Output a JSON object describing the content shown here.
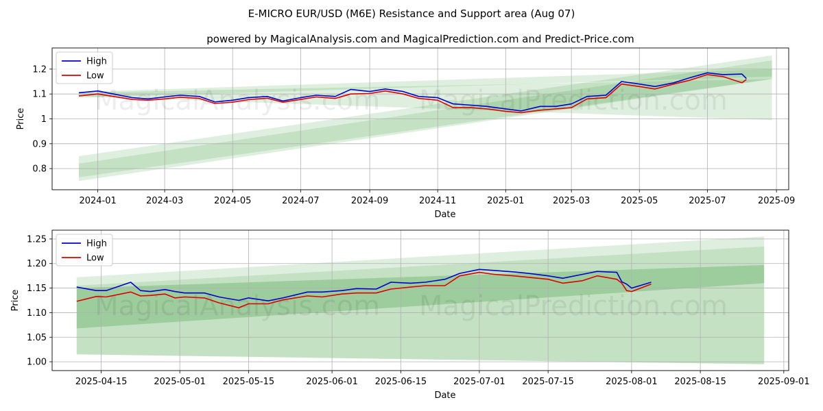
{
  "figure": {
    "title": "E-MICRO EUR/USD (M6E) Resistance and Support area (Aug 07)",
    "subtitle": "powered by MagicalAnalysis.com and MagicalPrediction.com and Predict-Price.com",
    "watermark_left": "MagicalAnalysis.com",
    "watermark_right": "MagicalPrediction.com"
  },
  "colors": {
    "high": "#0000cc",
    "low": "#dd0000",
    "band_light": "#c9e6c5",
    "band_mid": "#9fcf9a",
    "grid": "#b0b0b0"
  },
  "chart_data": [
    {
      "type": "line",
      "xlabel": "Date",
      "ylabel": "Price",
      "xlim": [
        "2023-11-21",
        "2025-09-12"
      ],
      "ylim": [
        0.715,
        1.285
      ],
      "x_ticks": [
        "2024-01",
        "2024-03",
        "2024-05",
        "2024-07",
        "2024-09",
        "2024-11",
        "2025-01",
        "2025-03",
        "2025-05",
        "2025-07",
        "2025-09"
      ],
      "x_tick_dates": [
        "2024-01-01",
        "2024-03-01",
        "2024-05-01",
        "2024-07-01",
        "2024-09-01",
        "2024-11-01",
        "2025-01-01",
        "2025-03-01",
        "2025-05-01",
        "2025-07-01",
        "2025-09-01"
      ],
      "y_ticks": [
        0.8,
        0.9,
        1.0,
        1.1,
        1.2
      ],
      "grid": true,
      "legend": "top-left",
      "series": [
        {
          "name": "High",
          "x": [
            "2023-12-15",
            "2024-01-01",
            "2024-01-15",
            "2024-02-01",
            "2024-02-15",
            "2024-03-01",
            "2024-03-15",
            "2024-04-01",
            "2024-04-15",
            "2024-05-01",
            "2024-05-15",
            "2024-06-01",
            "2024-06-15",
            "2024-07-01",
            "2024-07-15",
            "2024-08-01",
            "2024-08-15",
            "2024-09-01",
            "2024-09-15",
            "2024-10-01",
            "2024-10-15",
            "2024-11-01",
            "2024-11-15",
            "2024-12-01",
            "2024-12-15",
            "2025-01-01",
            "2025-01-15",
            "2025-02-01",
            "2025-02-15",
            "2025-03-01",
            "2025-03-15",
            "2025-04-01",
            "2025-04-15",
            "2025-05-01",
            "2025-05-15",
            "2025-06-01",
            "2025-06-15",
            "2025-07-01",
            "2025-07-15",
            "2025-08-01",
            "2025-08-05"
          ],
          "values": [
            1.105,
            1.112,
            1.1,
            1.085,
            1.08,
            1.088,
            1.095,
            1.09,
            1.068,
            1.075,
            1.085,
            1.09,
            1.072,
            1.085,
            1.095,
            1.09,
            1.118,
            1.11,
            1.12,
            1.11,
            1.09,
            1.085,
            1.06,
            1.055,
            1.05,
            1.04,
            1.032,
            1.05,
            1.05,
            1.06,
            1.09,
            1.095,
            1.15,
            1.14,
            1.13,
            1.145,
            1.165,
            1.185,
            1.178,
            1.18,
            1.162
          ]
        },
        {
          "name": "Low",
          "x": [
            "2023-12-15",
            "2024-01-01",
            "2024-01-15",
            "2024-02-01",
            "2024-02-15",
            "2024-03-01",
            "2024-03-15",
            "2024-04-01",
            "2024-04-15",
            "2024-05-01",
            "2024-05-15",
            "2024-06-01",
            "2024-06-15",
            "2024-07-01",
            "2024-07-15",
            "2024-08-01",
            "2024-08-15",
            "2024-09-01",
            "2024-09-15",
            "2024-10-01",
            "2024-10-15",
            "2024-11-01",
            "2024-11-15",
            "2024-12-01",
            "2024-12-15",
            "2025-01-01",
            "2025-01-15",
            "2025-02-01",
            "2025-02-15",
            "2025-03-01",
            "2025-03-15",
            "2025-04-01",
            "2025-04-15",
            "2025-05-01",
            "2025-05-15",
            "2025-06-01",
            "2025-06-15",
            "2025-07-01",
            "2025-07-15",
            "2025-08-01",
            "2025-08-05"
          ],
          "values": [
            1.092,
            1.1,
            1.09,
            1.078,
            1.075,
            1.08,
            1.087,
            1.082,
            1.062,
            1.067,
            1.077,
            1.083,
            1.067,
            1.078,
            1.088,
            1.082,
            1.1,
            1.102,
            1.112,
            1.1,
            1.082,
            1.075,
            1.045,
            1.045,
            1.04,
            1.03,
            1.025,
            1.035,
            1.04,
            1.045,
            1.08,
            1.085,
            1.14,
            1.13,
            1.12,
            1.14,
            1.155,
            1.178,
            1.17,
            1.145,
            1.158
          ]
        }
      ],
      "bands": [
        {
          "x": [
            "2023-12-15",
            "2025-08-28"
          ],
          "upper": [
            0.85,
            1.255
          ],
          "lower": [
            0.765,
            1.16
          ]
        },
        {
          "x": [
            "2023-12-15",
            "2025-08-28"
          ],
          "upper": [
            0.82,
            1.235
          ],
          "lower": [
            0.75,
            1.16
          ]
        },
        {
          "x": [
            "2023-12-15",
            "2025-08-28"
          ],
          "upper": [
            1.108,
            1.2
          ],
          "lower": [
            1.085,
            1.17
          ]
        },
        {
          "x": [
            "2023-12-15",
            "2025-08-28"
          ],
          "upper": [
            1.105,
            1.16
          ],
          "lower": [
            1.09,
            0.995
          ]
        }
      ]
    },
    {
      "type": "line",
      "xlabel": "Date",
      "ylabel": "Price",
      "xlim": [
        "2025-04-05",
        "2025-09-02"
      ],
      "ylim": [
        0.982,
        1.268
      ],
      "x_ticks": [
        "2025-04-15",
        "2025-05-01",
        "2025-05-15",
        "2025-06-01",
        "2025-06-15",
        "2025-07-01",
        "2025-07-15",
        "2025-08-01",
        "2025-08-15",
        "2025-09-01"
      ],
      "y_ticks": [
        1.0,
        1.05,
        1.1,
        1.15,
        1.2,
        1.25
      ],
      "y_tick_labels": [
        "1.00",
        "1.05",
        "1.10",
        "1.15",
        "1.20",
        "1.25"
      ],
      "grid": true,
      "legend": "top-left",
      "series": [
        {
          "name": "High",
          "x": [
            "2025-04-10",
            "2025-04-14",
            "2025-04-16",
            "2025-04-21",
            "2025-04-23",
            "2025-04-25",
            "2025-04-28",
            "2025-04-30",
            "2025-05-02",
            "2025-05-06",
            "2025-05-09",
            "2025-05-13",
            "2025-05-15",
            "2025-05-19",
            "2025-05-22",
            "2025-05-27",
            "2025-05-30",
            "2025-06-03",
            "2025-06-06",
            "2025-06-10",
            "2025-06-13",
            "2025-06-17",
            "2025-06-20",
            "2025-06-24",
            "2025-06-27",
            "2025-07-01",
            "2025-07-04",
            "2025-07-08",
            "2025-07-11",
            "2025-07-15",
            "2025-07-18",
            "2025-07-22",
            "2025-07-25",
            "2025-07-29",
            "2025-07-30",
            "2025-07-31",
            "2025-08-01",
            "2025-08-05"
          ],
          "values": [
            1.152,
            1.145,
            1.145,
            1.162,
            1.145,
            1.143,
            1.147,
            1.143,
            1.14,
            1.14,
            1.132,
            1.125,
            1.13,
            1.124,
            1.13,
            1.142,
            1.142,
            1.145,
            1.149,
            1.148,
            1.162,
            1.16,
            1.162,
            1.168,
            1.18,
            1.188,
            1.186,
            1.183,
            1.18,
            1.175,
            1.17,
            1.178,
            1.184,
            1.182,
            1.163,
            1.158,
            1.15,
            1.162
          ]
        },
        {
          "name": "Low",
          "x": [
            "2025-04-10",
            "2025-04-14",
            "2025-04-16",
            "2025-04-21",
            "2025-04-23",
            "2025-04-25",
            "2025-04-28",
            "2025-04-30",
            "2025-05-02",
            "2025-05-06",
            "2025-05-09",
            "2025-05-13",
            "2025-05-15",
            "2025-05-19",
            "2025-05-22",
            "2025-05-27",
            "2025-05-30",
            "2025-06-03",
            "2025-06-06",
            "2025-06-10",
            "2025-06-13",
            "2025-06-17",
            "2025-06-20",
            "2025-06-24",
            "2025-06-27",
            "2025-07-01",
            "2025-07-04",
            "2025-07-08",
            "2025-07-11",
            "2025-07-15",
            "2025-07-18",
            "2025-07-22",
            "2025-07-25",
            "2025-07-29",
            "2025-07-30",
            "2025-07-31",
            "2025-08-01",
            "2025-08-05"
          ],
          "values": [
            1.123,
            1.133,
            1.132,
            1.142,
            1.134,
            1.135,
            1.138,
            1.13,
            1.132,
            1.13,
            1.12,
            1.11,
            1.118,
            1.118,
            1.126,
            1.134,
            1.132,
            1.138,
            1.14,
            1.14,
            1.148,
            1.152,
            1.155,
            1.155,
            1.175,
            1.182,
            1.178,
            1.175,
            1.172,
            1.168,
            1.16,
            1.165,
            1.175,
            1.168,
            1.16,
            1.145,
            1.143,
            1.158
          ]
        }
      ],
      "bands": [
        {
          "x": [
            "2025-04-10",
            "2025-08-28"
          ],
          "upper": [
            1.172,
            1.255
          ],
          "lower": [
            1.015,
            0.995
          ]
        },
        {
          "x": [
            "2025-04-10",
            "2025-08-28"
          ],
          "upper": [
            1.155,
            1.235
          ],
          "lower": [
            1.015,
            0.995
          ]
        },
        {
          "x": [
            "2025-04-10",
            "2025-08-28"
          ],
          "upper": [
            1.15,
            1.197
          ],
          "lower": [
            1.068,
            1.16
          ]
        }
      ]
    }
  ]
}
